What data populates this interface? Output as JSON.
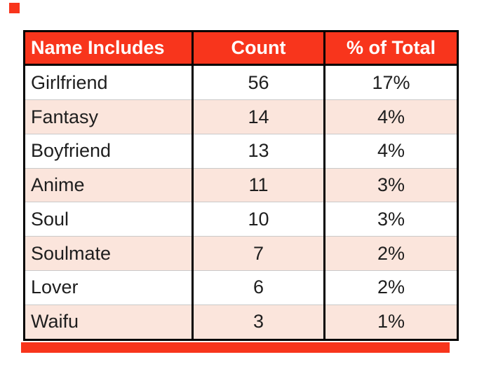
{
  "chart_data": {
    "type": "table",
    "columns": [
      "Name Includes",
      "Count",
      "% of Total"
    ],
    "rows": [
      [
        "Girlfriend",
        "56",
        "17%"
      ],
      [
        "Fantasy",
        "14",
        "4%"
      ],
      [
        "Boyfriend",
        "13",
        "4%"
      ],
      [
        "Anime",
        "11",
        "3%"
      ],
      [
        "Soul",
        "10",
        "3%"
      ],
      [
        "Soulmate",
        "7",
        "2%"
      ],
      [
        "Lover",
        "6",
        "2%"
      ],
      [
        "Waifu",
        "3",
        "1%"
      ]
    ],
    "layout": {
      "first_column_align": "left",
      "other_columns_align": "center",
      "grid": "black column separators, faint gray row lines",
      "legend": "none"
    }
  },
  "colors": {
    "accent": "#F8351C",
    "canvas": "#FFFFFF",
    "border": "#000000",
    "gridline": "#C9C9C9",
    "header_text": "#FFFFFF",
    "cell_text": "#1E1E1E",
    "row_alt": "#FBE5DC"
  }
}
